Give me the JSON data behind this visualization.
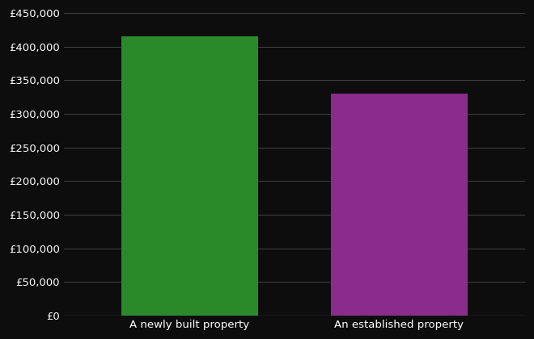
{
  "categories": [
    "A newly built property",
    "An established property"
  ],
  "values": [
    415000,
    330000
  ],
  "bar_colors": [
    "#2a8a2a",
    "#8b2b8b"
  ],
  "background_color": "#0d0d0d",
  "text_color": "#ffffff",
  "grid_color": "#4a4a4a",
  "ylim": [
    0,
    450000
  ],
  "yticks": [
    0,
    50000,
    100000,
    150000,
    200000,
    250000,
    300000,
    350000,
    400000,
    450000
  ],
  "bar_width": 0.65,
  "tick_fontsize": 9.5,
  "label_fontsize": 9.5
}
